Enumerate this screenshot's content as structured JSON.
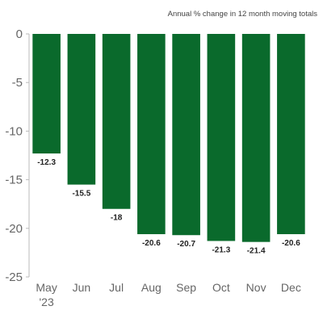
{
  "chart_data": {
    "type": "bar",
    "subtitle": "Annual % change in 12 month moving totals",
    "categories": [
      "May",
      "Jun",
      "Jul",
      "Aug",
      "Sep",
      "Oct",
      "Nov",
      "Dec"
    ],
    "category_sublabels": [
      "'23",
      "",
      "",
      "",
      "",
      "",
      "",
      ""
    ],
    "values": [
      -12.3,
      -15.5,
      -18,
      -20.6,
      -20.7,
      -21.3,
      -21.4,
      -20.6
    ],
    "data_labels": [
      "-12.3",
      "-15.5",
      "-18",
      "-20.6",
      "-20.7",
      "-21.3",
      "-21.4",
      "-20.6"
    ],
    "ylim": [
      -25,
      0
    ],
    "yticks": [
      0,
      -5,
      -10,
      -15,
      -20,
      -25
    ],
    "grid": false,
    "bar_color": "#0a6a2c"
  }
}
